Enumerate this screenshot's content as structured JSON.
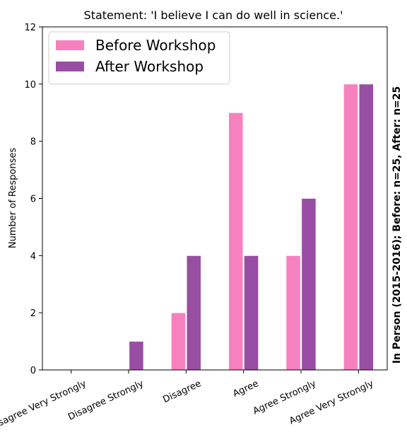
{
  "chart_data": {
    "type": "bar",
    "title": "Statement: 'I believe I can do well in science.'",
    "ylabel": "Number of Responses",
    "xlabel": "",
    "side_label": "In Person (2015-2016); Before: n=25, After: n=25",
    "categories": [
      "Disagree Very Strongly",
      "Disagree Strongly",
      "Disagree",
      "Agree",
      "Agree Strongly",
      "Agree Very Strongly"
    ],
    "series": [
      {
        "name": "Before Workshop",
        "color": "#f781bf",
        "values": [
          0,
          0,
          2,
          9,
          4,
          10
        ]
      },
      {
        "name": "After Workshop",
        "color": "#984ea3",
        "values": [
          0,
          1,
          4,
          4,
          6,
          10
        ]
      }
    ],
    "ylim": [
      0,
      12
    ],
    "yticks": [
      0,
      2,
      4,
      6,
      8,
      10,
      12
    ],
    "grid": false,
    "legend_position": "top-left"
  }
}
